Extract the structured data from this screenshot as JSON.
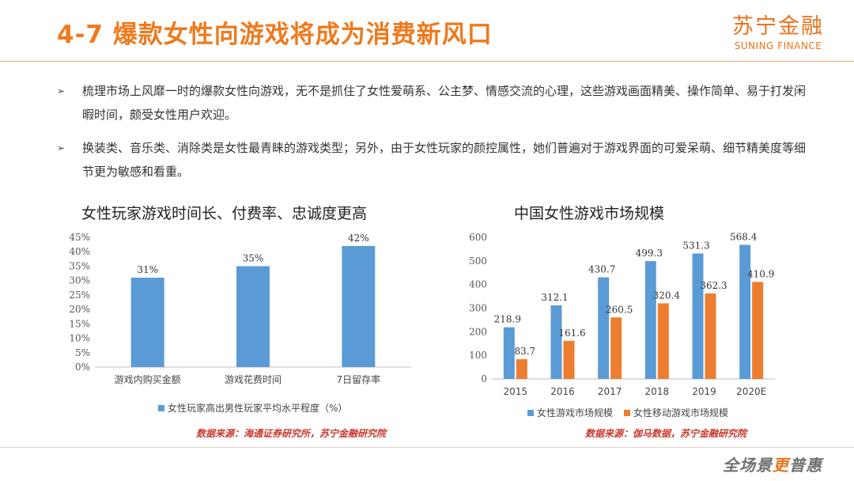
{
  "header": {
    "title": "4-7 爆款女性向游戏将成为消费新风口",
    "brand_cn": "苏宁金融",
    "brand_en": "SUNING FINANCE"
  },
  "bullets": [
    "梳理市场上风靡一时的爆款女性向游戏，无不是抓住了女性爱萌系、公主梦、情感交流的心理，这些游戏画面精美、操作简单、易于打发闲暇时间，颇受女性用户欢迎。",
    "换装类、音乐类、消除类是女性最青睐的游戏类型；另外，由于女性玩家的颜控属性，她们普遍对于游戏界面的可爱呆萌、细节精美度等细节更为敏感和看重。"
  ],
  "footer": {
    "slogan_left": "全场景",
    "slogan_check": "更",
    "slogan_right": "普惠"
  },
  "colors": {
    "accent": "#ee7a1e",
    "bar_blue": "#5b9bd5",
    "bar_orange": "#ed7d31",
    "source_red": "#c93a2f"
  },
  "chart_data": [
    {
      "type": "bar",
      "title": "女性玩家游戏时间长、付费率、忠诚度更高",
      "categories": [
        "游戏内购买金额",
        "游戏花费时间",
        "7日留存率"
      ],
      "series": [
        {
          "name": "女性玩家高出男性玩家平均水平程度（%）",
          "values": [
            31,
            35,
            42
          ],
          "labels": [
            "31%",
            "35%",
            "42%"
          ]
        }
      ],
      "ylim": [
        0,
        45
      ],
      "yticks": [
        "0%",
        "5%",
        "10%",
        "15%",
        "20%",
        "25%",
        "30%",
        "35%",
        "40%",
        "45%"
      ],
      "legend": "bottom",
      "grid": false,
      "source": "数据来源：海通证券研究所，苏宁金融研究院"
    },
    {
      "type": "bar",
      "title": "中国女性游戏市场规模",
      "categories": [
        "2015",
        "2016",
        "2017",
        "2018",
        "2019",
        "2020E"
      ],
      "series": [
        {
          "name": "女性游戏市场规模",
          "values": [
            218.9,
            312.1,
            430.7,
            499.3,
            531.3,
            568.4
          ]
        },
        {
          "name": "女性移动游戏市场规模",
          "values": [
            83.7,
            161.6,
            260.5,
            320.4,
            362.3,
            410.9
          ]
        }
      ],
      "ylim": [
        0,
        600
      ],
      "yticks": [
        "0",
        "100",
        "200",
        "300",
        "400",
        "500",
        "600"
      ],
      "legend": "bottom",
      "grid": false,
      "source": "数据来源：伽马数据，苏宁金融研究院"
    }
  ]
}
